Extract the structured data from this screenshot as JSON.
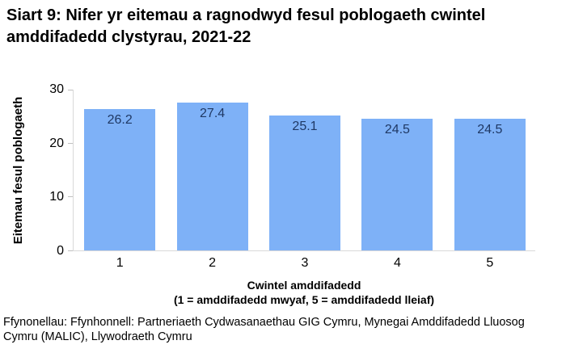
{
  "chart_data": {
    "type": "bar",
    "title": "Siart 9: Nifer yr eitemau a ragnodwyd fesul poblogaeth cwintel amddifadedd clystyrau, 2021-22",
    "categories": [
      "1",
      "2",
      "3",
      "4",
      "5"
    ],
    "values": [
      26.2,
      27.4,
      25.1,
      24.5,
      24.5
    ],
    "xlabel": "Cwintel amddifadedd",
    "xlabel_note": "(1 = amddifadedd mwyaf, 5 = amddifadedd lleiaf)",
    "ylabel": "Eitemau fesul poblogaeth",
    "ylim": [
      0,
      30
    ],
    "yticks": [
      0,
      10,
      20,
      30
    ],
    "grid": false,
    "legend": "none",
    "data_label_position": "inside-top"
  },
  "source_note": "Ffynonellau: Ffynhonnell: Partneriaeth Cydwasanaethau GIG Cymru, Mynegai Amddifadedd Lluosog Cymru (MALIC), Llywodraeth Cymru",
  "colors": {
    "bar_fill": "#7EB1F7",
    "data_label": "#1F3864",
    "axis_line": "#D9D9D9",
    "tick_mark": "#BFBFBF",
    "text": "#000000"
  }
}
